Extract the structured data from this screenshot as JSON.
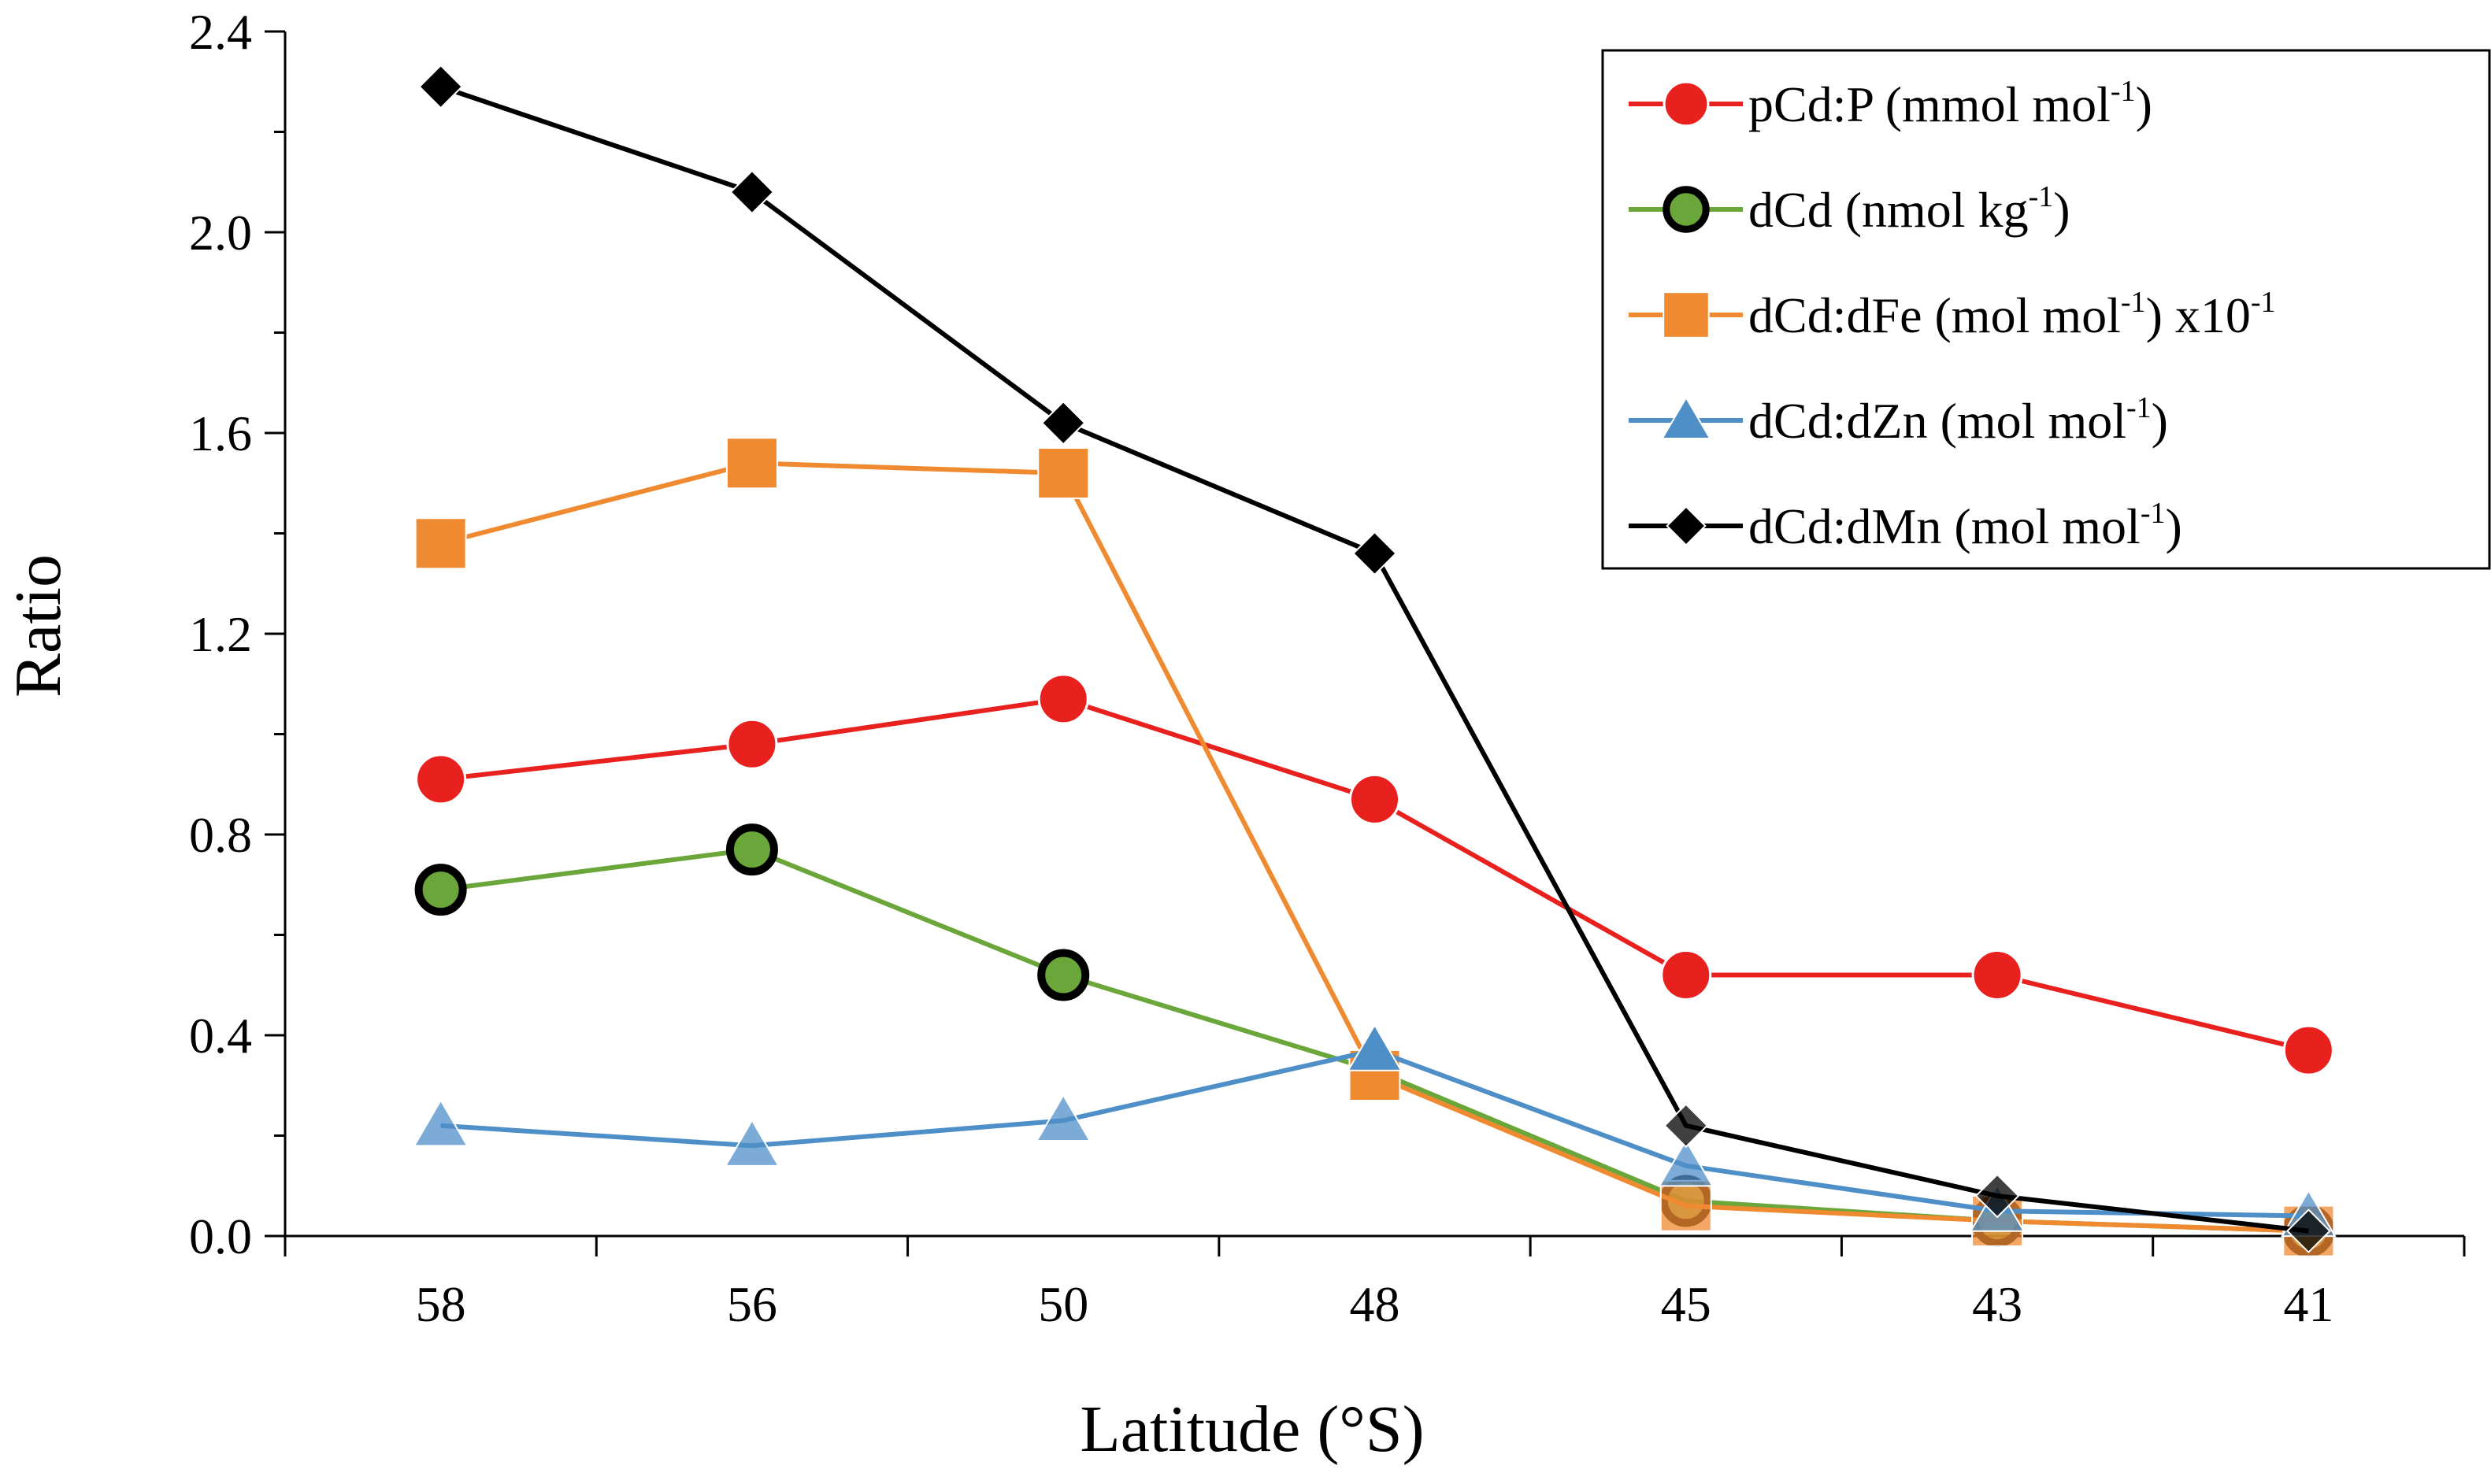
{
  "chart_data": {
    "type": "line",
    "title": "",
    "xlabel": "Latitude (°S)",
    "ylabel": "Ratio",
    "categories": [
      "58",
      "56",
      "50",
      "48",
      "45",
      "43",
      "41"
    ],
    "ylim": [
      0,
      2.4
    ],
    "yticks": [
      "0.0",
      "0.4",
      "0.8",
      "1.2",
      "1.6",
      "2.0",
      "2.4"
    ],
    "ytick_values": [
      0,
      0.4,
      0.8,
      1.2,
      1.6,
      2.0,
      2.4
    ],
    "grid": false,
    "legend_position": "top-right",
    "series": [
      {
        "name": "pCd:P (mmol mol-1)",
        "label_main": "pCd:P (mmol mol",
        "label_sup": "-1",
        "label_tail": ")",
        "marker": "circle",
        "color": "#e8211f",
        "values": [
          0.91,
          0.98,
          1.07,
          0.87,
          0.52,
          0.52,
          0.37
        ]
      },
      {
        "name": "dCd (nmol kg-1)",
        "label_main": "dCd (nmol kg",
        "label_sup": "-1",
        "label_tail": ")",
        "marker": "ring",
        "color": "#6aa63a",
        "values": [
          0.69,
          0.77,
          0.52,
          0.33,
          0.07,
          0.03,
          0.01
        ]
      },
      {
        "name": "dCd:dFe (mol mol-1) x10-1",
        "label_main": "dCd:dFe (mol mol",
        "label_sup": "-1",
        "label_tail": ") x10",
        "label_sup2": "-1",
        "marker": "square",
        "color": "#f08a30",
        "values": [
          1.38,
          1.54,
          1.52,
          0.32,
          0.06,
          0.03,
          0.01
        ]
      },
      {
        "name": "dCd:dZn (mol mol-1)",
        "label_main": "dCd:dZn (mol mol",
        "label_sup": "-1",
        "label_tail": ")",
        "marker": "triangle",
        "color": "#4f8fc8",
        "values": [
          0.22,
          0.18,
          0.23,
          0.37,
          0.14,
          0.05,
          0.04
        ]
      },
      {
        "name": "dCd:dMn (mol mol-1)",
        "label_main": "dCd:dMn (mol mol",
        "label_sup": "-1",
        "label_tail": ")",
        "marker": "diamond",
        "color": "#000000",
        "values": [
          2.29,
          2.08,
          1.62,
          1.36,
          0.22,
          0.08,
          0.01
        ]
      }
    ]
  }
}
